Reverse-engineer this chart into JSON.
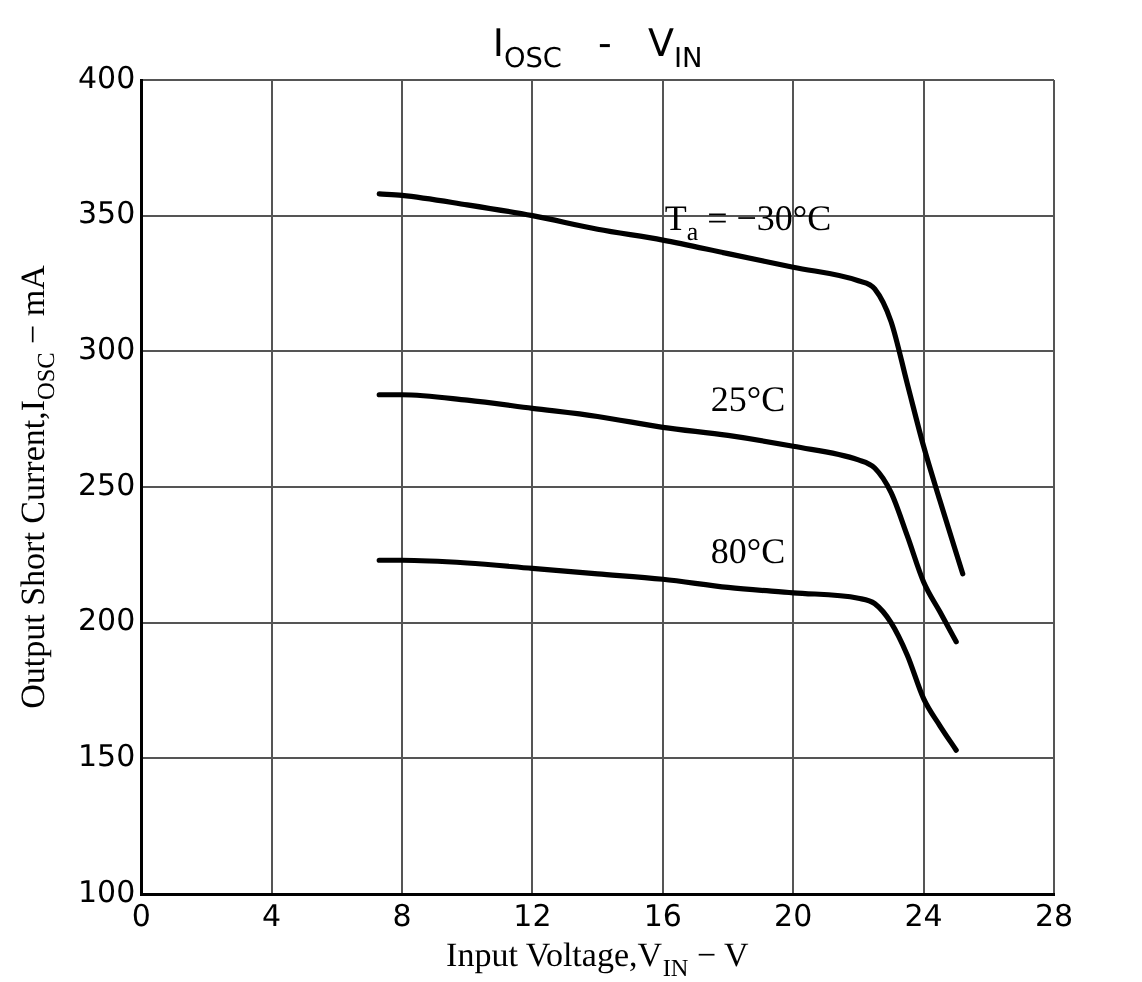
{
  "chart_data": {
    "type": "line",
    "title": "I$_{OSC}$   -   V$_{IN}$",
    "xlabel": "Input Voltage,V$_{IN}$ − V",
    "ylabel": "Output Short Current,I$_{OSC}$ − mA",
    "xlim": [
      0,
      28
    ],
    "xticks": [
      0,
      4,
      8,
      12,
      16,
      20,
      24,
      28
    ],
    "ylim": [
      100,
      400
    ],
    "yticks": [
      100,
      150,
      200,
      250,
      300,
      350,
      400
    ],
    "grid": true,
    "legend": false,
    "marker": "none",
    "line_style": "solid",
    "series": [
      {
        "name": "T$_{a}$ = −30°C",
        "color": "#000000",
        "x": [
          7.3,
          8,
          10,
          12,
          14,
          16,
          18,
          20,
          22,
          22.5,
          23,
          23.5,
          24,
          24.5,
          25.2
        ],
        "values": [
          358,
          357.5,
          354,
          350,
          345,
          341,
          336,
          331,
          326,
          323,
          311,
          288,
          265,
          245,
          218
        ]
      },
      {
        "name": "25°C",
        "color": "#000000",
        "x": [
          7.3,
          8,
          10,
          12,
          14,
          16,
          18,
          20,
          22,
          22.5,
          23,
          23.5,
          24,
          24.5,
          25
        ],
        "values": [
          284,
          284,
          282,
          279,
          276,
          272,
          269,
          265,
          260,
          257,
          248,
          232,
          215,
          204,
          193
        ]
      },
      {
        "name": "80°C",
        "color": "#000000",
        "x": [
          7.3,
          8,
          10,
          12,
          14,
          16,
          18,
          20,
          22,
          22.5,
          23,
          23.5,
          24,
          24.5,
          25
        ],
        "values": [
          223,
          223,
          222,
          220,
          218,
          216,
          213,
          211,
          209,
          207,
          200,
          188,
          172,
          162,
          153
        ]
      }
    ]
  }
}
